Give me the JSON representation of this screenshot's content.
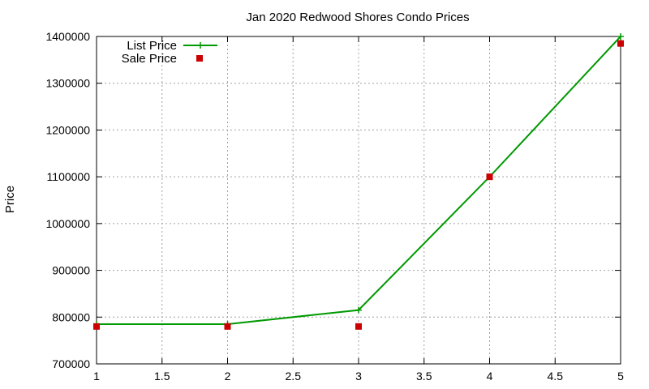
{
  "chart_data": {
    "type": "line",
    "title": "Jan 2020 Redwood Shores Condo Prices",
    "xlabel": "",
    "ylabel": "Price",
    "xlim": [
      1,
      5
    ],
    "ylim": [
      700000,
      1400000
    ],
    "xticks": [
      "1",
      "1.5",
      "2",
      "2.5",
      "3",
      "3.5",
      "4",
      "4.5",
      "5"
    ],
    "yticks": [
      "700000",
      "800000",
      "900000",
      "1000000",
      "1100000",
      "1200000",
      "1300000",
      "1400000"
    ],
    "grid": true,
    "legend": "top-left",
    "series": [
      {
        "name": "List Price",
        "style": "line-with-plus-markers",
        "color": "#009900",
        "x": [
          1,
          2,
          3,
          4,
          5
        ],
        "y": [
          785000,
          785000,
          815000,
          1100000,
          1400000
        ]
      },
      {
        "name": "Sale Price",
        "style": "square-markers",
        "color": "#cc0000",
        "x": [
          1,
          2,
          3,
          4,
          5
        ],
        "y": [
          780000,
          780000,
          780000,
          1100000,
          1385000
        ]
      }
    ]
  }
}
